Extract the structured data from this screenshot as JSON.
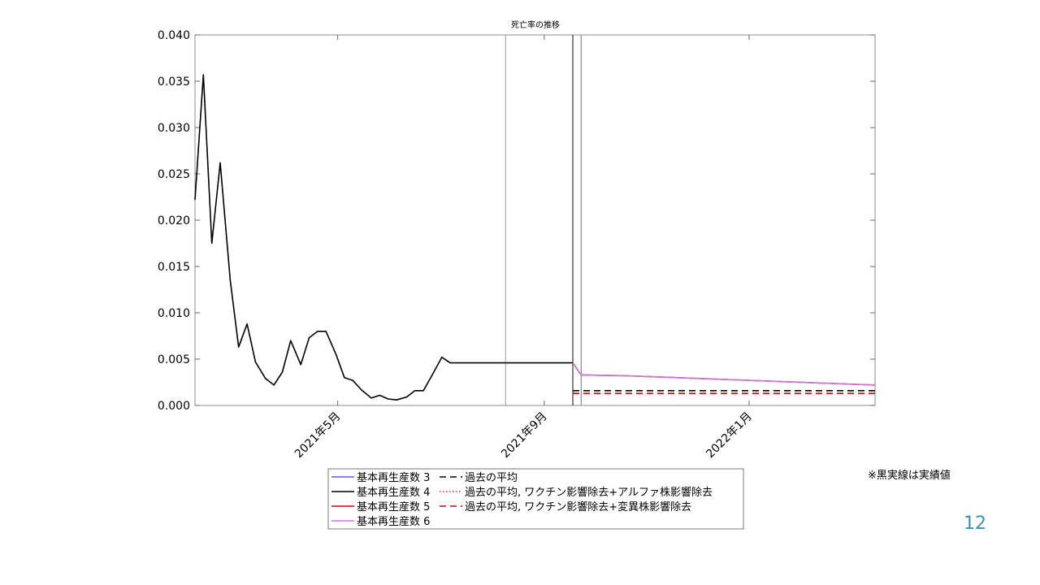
{
  "chart_data": {
    "type": "line",
    "title": "死亡率の推移",
    "xlabel": "",
    "ylabel": "",
    "ylim": [
      0,
      0.04
    ],
    "xlim": [
      "2021-02-05",
      "2022-03-17"
    ],
    "y_ticks": [
      "0.000",
      "0.005",
      "0.010",
      "0.015",
      "0.020",
      "0.025",
      "0.030",
      "0.035",
      "0.040"
    ],
    "x_ticks": [
      {
        "date": "2021-05-01",
        "label": "2021年5月"
      },
      {
        "date": "2021-09-01",
        "label": "2021年9月"
      },
      {
        "date": "2022-01-01",
        "label": "2022年1月"
      }
    ],
    "vertical_lines": [
      {
        "date": "2021-08-09",
        "color": "#aaaaaa"
      },
      {
        "date": "2021-09-18",
        "color": "#333333"
      },
      {
        "date": "2021-09-23",
        "color": "#888888"
      }
    ],
    "legend_location": "bottom-center",
    "legend": [
      {
        "label": "基本再生産数 3",
        "color": "#5a5aff",
        "dash": "solid"
      },
      {
        "label": "基本再生産数 4",
        "color": "#000000",
        "dash": "solid"
      },
      {
        "label": "基本再生産数 5",
        "color": "#e00000",
        "dash": "solid"
      },
      {
        "label": "基本再生産数 6",
        "color": "#c878d8",
        "dash": "solid"
      },
      {
        "label": "過去の平均",
        "color": "#000000",
        "dash": "dashed"
      },
      {
        "label": "過去の平均, ワクチン影響除去+アルファ株影響除去",
        "color": "#e00000",
        "dash": "dotted"
      },
      {
        "label": "過去の平均, ワクチン影響除去+変異株影響除去",
        "color": "#e00000",
        "dash": "dashed"
      }
    ],
    "series": [
      {
        "name": "実績",
        "color": "#000000",
        "dash": "solid",
        "x": [
          "2021-02-05",
          "2021-02-10",
          "2021-02-15",
          "2021-02-20",
          "2021-02-26",
          "2021-03-03",
          "2021-03-08",
          "2021-03-13",
          "2021-03-19",
          "2021-03-24",
          "2021-03-29",
          "2021-04-03",
          "2021-04-09",
          "2021-04-14",
          "2021-04-19",
          "2021-04-24",
          "2021-04-30",
          "2021-05-05",
          "2021-05-10",
          "2021-05-15",
          "2021-05-21",
          "2021-05-26",
          "2021-05-31",
          "2021-06-05",
          "2021-06-11",
          "2021-06-16",
          "2021-06-21",
          "2021-06-26",
          "2021-07-02",
          "2021-07-07",
          "2021-07-12",
          "2021-07-17",
          "2021-07-23",
          "2021-07-28",
          "2021-08-02",
          "2021-08-07",
          "2021-08-13",
          "2021-08-18",
          "2021-08-23",
          "2021-08-28",
          "2021-09-03",
          "2021-09-08",
          "2021-09-13",
          "2021-09-18"
        ],
        "values": [
          0.0222,
          0.0357,
          0.0175,
          0.0262,
          0.0135,
          0.0063,
          0.0088,
          0.0047,
          0.0029,
          0.0022,
          0.0036,
          0.007,
          0.0044,
          0.0073,
          0.008,
          0.008,
          0.0055,
          0.003,
          0.0027,
          0.0017,
          0.0008,
          0.0011,
          0.0007,
          0.0006,
          0.0009,
          0.0016,
          0.0016,
          0.0032,
          0.0052,
          0.0046,
          0.0046,
          0.0046,
          0.0046,
          0.0046,
          0.0046,
          0.0046,
          0.0046,
          0.0046,
          0.0046,
          0.0046,
          0.0046,
          0.0046,
          0.0046,
          0.0046
        ]
      },
      {
        "name": "基本再生産数 5",
        "color": "#e00000",
        "dash": "solid",
        "x": [
          "2021-09-18",
          "2021-09-23",
          "2021-10-20",
          "2021-11-05",
          "2022-03-17"
        ],
        "values": [
          0.0046,
          0.0033,
          0.0032,
          0.0031,
          0.0022
        ]
      },
      {
        "name": "基本再生産数 6",
        "color": "#c878d8",
        "dash": "solid",
        "x": [
          "2021-09-18",
          "2021-09-23",
          "2021-10-20",
          "2021-11-05",
          "2022-03-17"
        ],
        "values": [
          0.0046,
          0.0033,
          0.0032,
          0.0031,
          0.0022
        ]
      },
      {
        "name": "過去の平均",
        "color": "#000000",
        "dash": "dashed",
        "x": [
          "2021-09-18",
          "2022-03-17"
        ],
        "values": [
          0.0016,
          0.0016
        ]
      },
      {
        "name": "過去の平均, ワクチン影響除去+変異株影響除去",
        "color": "#e00000",
        "dash": "dashed",
        "x": [
          "2021-09-18",
          "2022-03-17"
        ],
        "values": [
          0.0013,
          0.0013
        ]
      }
    ]
  },
  "note": "※黒実線は実績値",
  "page_number": "12"
}
